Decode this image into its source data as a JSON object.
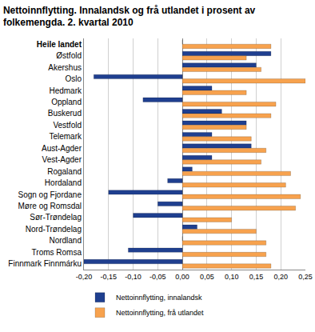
{
  "chart_data": {
    "type": "bar",
    "orientation": "horizontal",
    "title": "Nettoinnflytting. Innalandsk og frå utlandet i prosent av folkemengda. 2. kvartal 2010",
    "categories": [
      "Heile landet",
      "Østfold",
      "Akershus",
      "Oslo",
      "Hedmark",
      "Oppland",
      "Buskerud",
      "Vestfold",
      "Telemark",
      "Aust-Agder",
      "Vest-Agder",
      "Rogaland",
      "Hordaland",
      "Sogn og Fjordane",
      "Møre og Romsdal",
      "Sør-Trøndelag",
      "Nord-Trøndelag",
      "Nordland",
      "Troms Romsa",
      "Finnmark Finnmárku"
    ],
    "series": [
      {
        "name": "Nettoinnflytting, innalandsk",
        "color": "#1f3f8f",
        "values": [
          0,
          0.18,
          0.15,
          -0.18,
          0.06,
          -0.08,
          0.08,
          0.13,
          0.06,
          0.14,
          0.06,
          0.02,
          -0.03,
          -0.15,
          -0.05,
          -0.1,
          0.03,
          0,
          -0.11,
          -0.2
        ]
      },
      {
        "name": "Nettoinnflytting, frå utlandet",
        "color": "#f7a24e",
        "values": [
          0.18,
          0.13,
          0.16,
          0.25,
          0.13,
          0.19,
          0.18,
          0.13,
          0.14,
          0.17,
          0.16,
          0.22,
          0.21,
          0.24,
          0.23,
          0.1,
          0.15,
          0.17,
          0.17,
          0.18
        ]
      }
    ],
    "xlim": [
      -0.2,
      0.25
    ],
    "xticks": [
      {
        "value": -0.2,
        "label": "-0,20"
      },
      {
        "value": -0.15,
        "label": "-0,15"
      },
      {
        "value": -0.1,
        "label": "-0,10"
      },
      {
        "value": -0.05,
        "label": "-0,05"
      },
      {
        "value": 0,
        "label": "0,00"
      },
      {
        "value": 0.05,
        "label": "0,05"
      },
      {
        "value": 0.1,
        "label": "0,10"
      },
      {
        "value": 0.15,
        "label": "0,15"
      },
      {
        "value": 0.2,
        "label": "0,20"
      },
      {
        "value": 0.25,
        "label": "0,25"
      }
    ],
    "grid": true,
    "legend": "bottom"
  }
}
